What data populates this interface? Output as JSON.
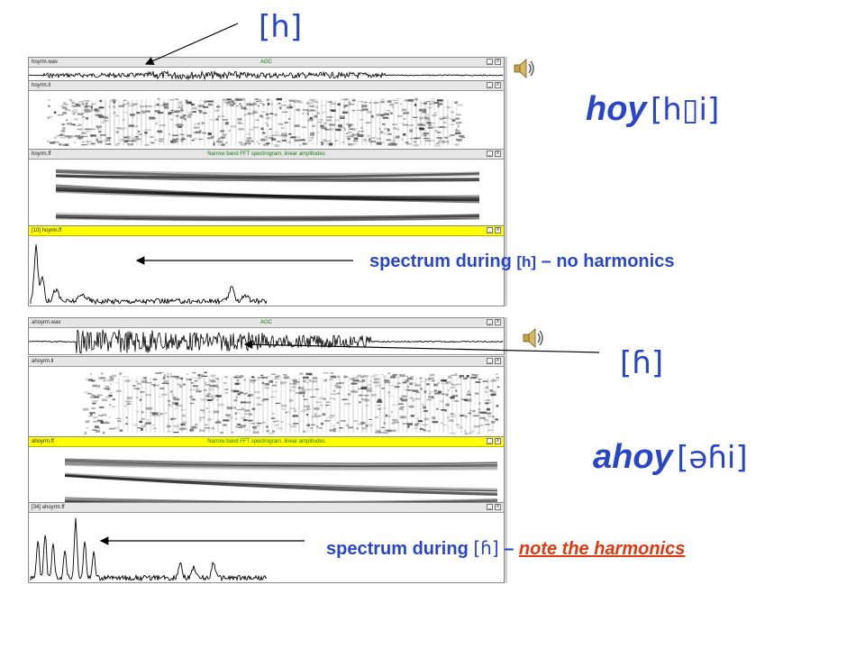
{
  "top_section": {
    "label_h": "[h]",
    "word": "hoy",
    "ipa": "[h▯i]",
    "caption_prefix": "spectrum during",
    "caption_symbol": "[h]",
    "caption_suffix": "– no harmonics",
    "windows": {
      "wave_title": "hoyrm.wav",
      "wave_center": "AGC",
      "ll_title": "hoyrm.ll",
      "ff_title": "hoyrm.ff",
      "ff_center": "Narrow band FFT spectrogram, linear amplitudes",
      "spec_title": "[10] hoyrm.ff"
    },
    "speaker_icon": "speaker-icon"
  },
  "bottom_section": {
    "label_h": "[ɦ]",
    "word": "ahoy",
    "ipa": "[əɦi]",
    "caption_prefix": "spectrum during",
    "caption_symbol": "[ɦ]",
    "caption_dash": "–",
    "caption_note": "note the harmonics",
    "windows": {
      "wave_title": "ahoyrm.wav",
      "wave_center": "AGC",
      "ll_title": "ahoyrm.ll",
      "ff_title": "ahoyrm.ff",
      "ff_center": "Narrow band FFT spectrogram, linear amplitudes",
      "spec_title": "[34] ahoyrm.ff"
    },
    "speaker_icon": "speaker-icon"
  },
  "window_buttons": {
    "minimize": "_",
    "close": "x"
  },
  "colors": {
    "text_blue": "#2a46c8",
    "note_red": "#e03a12",
    "highlight_yellow": "#ffff00",
    "agc_green": "#1a7a1a"
  }
}
